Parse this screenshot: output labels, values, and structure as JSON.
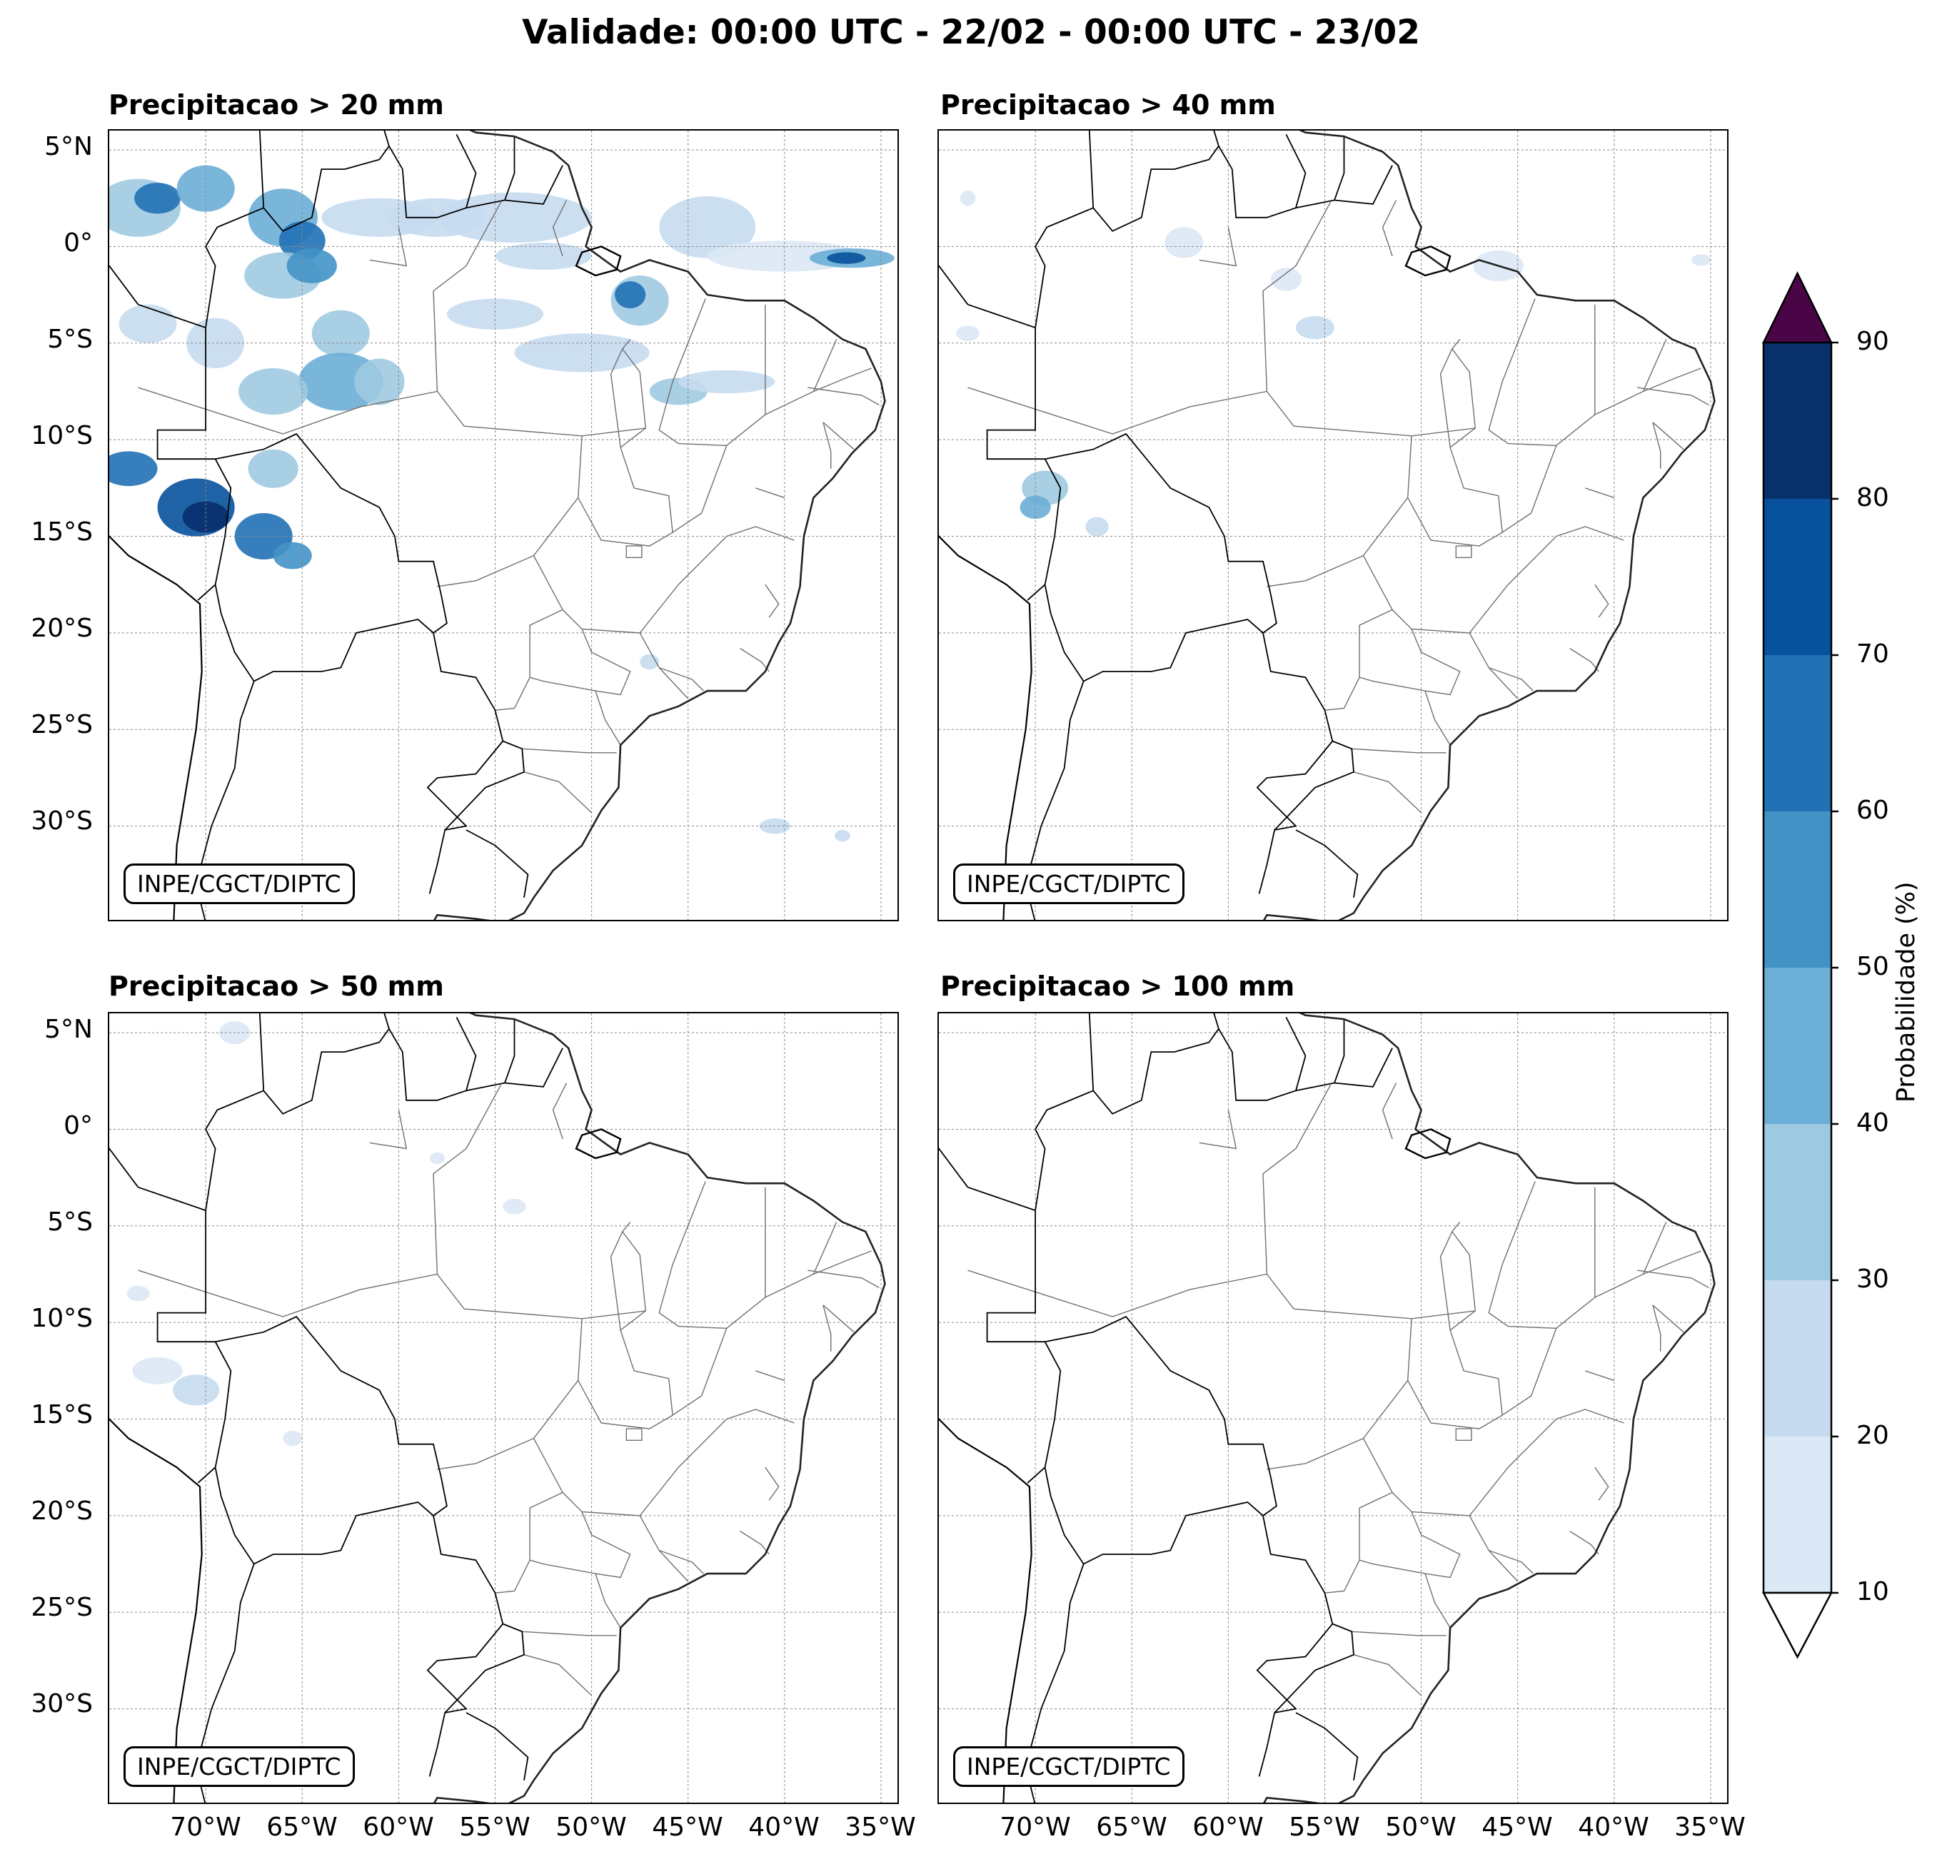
{
  "figure_title": "Validade: 00:00 UTC - 22/02 - 00:00 UTC - 23/02",
  "watermark": "INPE/CGCT/DIPTC",
  "lat_ticks": [
    "5°N",
    "0°",
    "5°S",
    "10°S",
    "15°S",
    "20°S",
    "25°S",
    "30°S"
  ],
  "lon_ticks": [
    "70°W",
    "65°W",
    "60°W",
    "55°W",
    "50°W",
    "45°W",
    "40°W",
    "35°W"
  ],
  "panels": [
    {
      "title": "Precipitacao > 20 mm",
      "threshold_mm": 20
    },
    {
      "title": "Precipitacao > 40 mm",
      "threshold_mm": 40
    },
    {
      "title": "Precipitacao > 50 mm",
      "threshold_mm": 50
    },
    {
      "title": "Precipitacao > 100 mm",
      "threshold_mm": 100
    }
  ],
  "colorbar": {
    "label": "Probabilidade (%)",
    "ticks": [
      "10",
      "20",
      "30",
      "40",
      "50",
      "60",
      "70",
      "80",
      "90"
    ],
    "colors": [
      "#dbe8f5",
      "#c6dbef",
      "#9ecae1",
      "#6baed6",
      "#4292c6",
      "#2171b5",
      "#08519c",
      "#08306b"
    ],
    "over_color": "#4a0547",
    "under_color": "#ffffff"
  },
  "map": {
    "extent_lon": [
      -75,
      -34
    ],
    "extent_lat": [
      -35,
      6
    ],
    "gridline_color": "#888888",
    "coast_color": "#000000",
    "state_border_color": "#707070"
  }
}
